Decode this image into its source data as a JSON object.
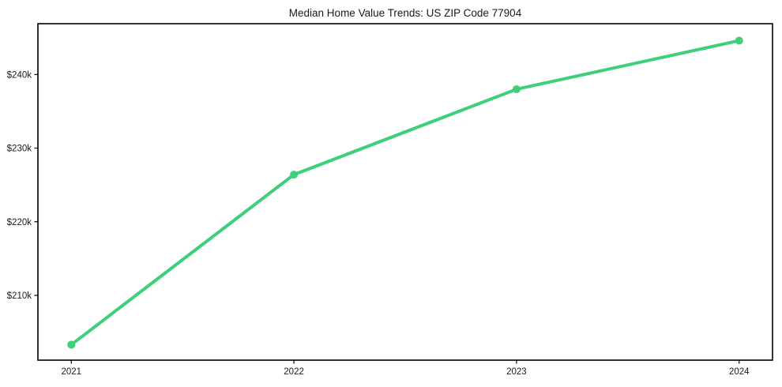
{
  "chart_data": {
    "type": "line",
    "title": "Median Home Value Trends: US ZIP Code 77904",
    "x": [
      2021,
      2022,
      2023,
      2024
    ],
    "x_tick_labels": [
      "2021",
      "2022",
      "2023",
      "2024"
    ],
    "series": [
      {
        "name": "Median home value",
        "values": [
          203300,
          226400,
          238000,
          244600
        ],
        "color": "#3ecf7a",
        "marker": "circle",
        "line_width": 4,
        "marker_radius": 5
      }
    ],
    "y_ticks": [
      210000,
      220000,
      230000,
      240000
    ],
    "y_tick_labels": [
      "$210k",
      "$220k",
      "$230k",
      "$240k"
    ],
    "xlim": [
      2020.85,
      2024.15
    ],
    "ylim": [
      201200,
      246900
    ],
    "grid": false,
    "legend": "none",
    "axis_color": "#000000",
    "text_color": "#1a1a1a",
    "background": "#ffffff"
  }
}
